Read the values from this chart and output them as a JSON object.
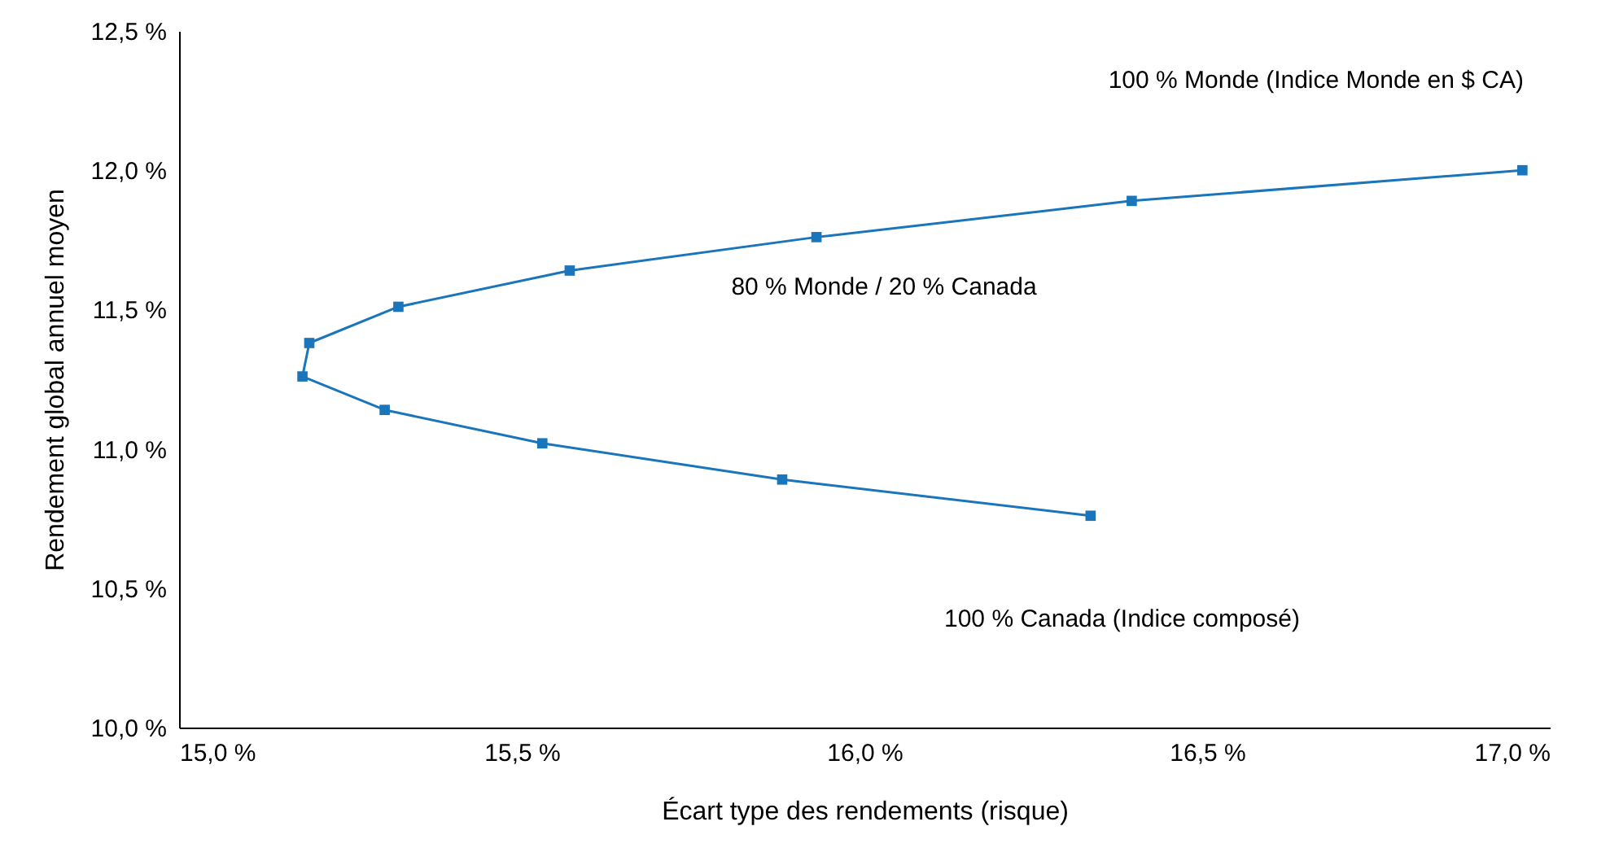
{
  "chart_data": {
    "type": "line",
    "xlabel": "Écart type des rendements (risque)",
    "ylabel": "Rendement global annuel moyen",
    "x": [
      16.96,
      16.39,
      15.93,
      15.57,
      15.32,
      15.19,
      15.18,
      15.3,
      15.53,
      15.88,
      16.33
    ],
    "series": [
      {
        "color": "#1a75bb",
        "values": [
          12.0,
          11.89,
          11.76,
          11.64,
          11.51,
          11.38,
          11.26,
          11.14,
          11.02,
          10.89,
          10.76
        ]
      }
    ],
    "xlim": [
      15.0,
      17.0
    ],
    "ylim": [
      10.0,
      12.5
    ],
    "xticks": [
      {
        "value": 15.0,
        "label": "15,0 %"
      },
      {
        "value": 15.5,
        "label": "15,5 %"
      },
      {
        "value": 16.0,
        "label": "16,0 %"
      },
      {
        "value": 16.5,
        "label": "16,5 %"
      },
      {
        "value": 17.0,
        "label": "17,0 %"
      }
    ],
    "yticks": [
      {
        "value": 10.0,
        "label": "10,0 %"
      },
      {
        "value": 10.5,
        "label": "10,5 %"
      },
      {
        "value": 11.0,
        "label": "11,0 %"
      },
      {
        "value": 11.5,
        "label": "11,5 %"
      },
      {
        "value": 12.0,
        "label": "12,0 %"
      },
      {
        "value": 12.5,
        "label": "12,5 %"
      }
    ],
    "annotations": [
      "100 % Monde (Indice Monde en $ CA)",
      "80 % Monde / 20 % Canada",
      "100 % Canada (Indice composé)"
    ],
    "grid": false,
    "marker": "square",
    "line_style": "solid"
  }
}
